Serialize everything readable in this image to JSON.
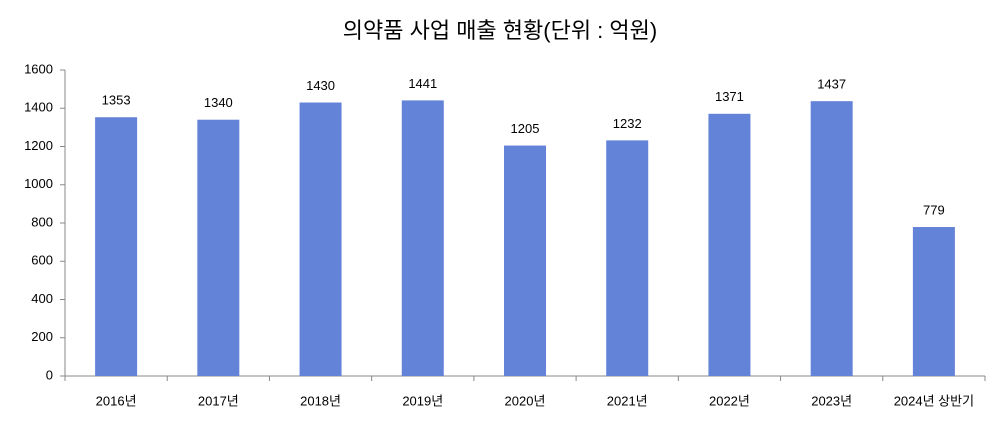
{
  "chart_data": {
    "type": "bar",
    "title": "의약품 사업 매출 현황(단위 : 억원)",
    "categories": [
      "2016년",
      "2017년",
      "2018년",
      "2019년",
      "2020년",
      "2021년",
      "2022년",
      "2023년",
      "2024년 상반기"
    ],
    "values": [
      1353,
      1340,
      1430,
      1441,
      1205,
      1232,
      1371,
      1437,
      779
    ],
    "color": "#6383D9",
    "ylim": [
      0,
      1600
    ],
    "yticks": [
      0,
      200,
      400,
      600,
      800,
      1000,
      1200,
      1400,
      1600
    ],
    "grid": false
  }
}
